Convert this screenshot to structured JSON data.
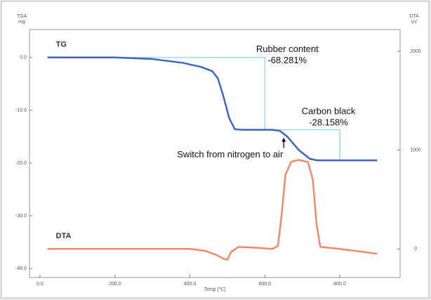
{
  "chart_data": {
    "type": "line",
    "y_label_top": "TGA",
    "y_label_unit": "mg",
    "y2_label_top": "DTA",
    "y2_label_unit": "uV",
    "x_label": "Temp [℃]",
    "xlim": [
      -28,
      961
    ],
    "xticks": [
      {
        "value": 0,
        "label": "0.0"
      },
      {
        "value": 200,
        "label": "200.0"
      },
      {
        "value": 400,
        "label": "400.0"
      },
      {
        "value": 600,
        "label": "600.0"
      },
      {
        "value": 800,
        "label": "800.0"
      }
    ],
    "ylim": [
      -41.7,
      5.3
    ],
    "yticks": [
      {
        "value": 0,
        "label": "0.0"
      },
      {
        "value": -10,
        "label": "-10.0"
      },
      {
        "value": -20,
        "label": "-20.0"
      },
      {
        "value": -30,
        "label": "-30.0"
      },
      {
        "value": -40,
        "label": "-40.0"
      }
    ],
    "y2lim": [
      -290,
      2220
    ],
    "y2ticks": [
      2000,
      1000,
      0
    ],
    "series": [
      {
        "name": "TG",
        "color": "#3d66c9",
        "x": [
          20,
          200,
          300,
          380,
          430,
          460,
          475,
          490,
          505,
          520,
          540,
          620,
          640,
          660,
          690,
          720,
          740,
          800,
          900
        ],
        "values": [
          0.0,
          0.0,
          -0.3,
          -1.0,
          -1.8,
          -2.6,
          -4.0,
          -7.5,
          -11.5,
          -13.6,
          -13.7,
          -13.7,
          -13.9,
          -15.0,
          -17.5,
          -19.2,
          -19.5,
          -19.5,
          -19.5
        ]
      },
      {
        "name": "DTA",
        "axis": "y2",
        "color": "#f2886a",
        "x": [
          20,
          200,
          400,
          440,
          470,
          490,
          500,
          510,
          530,
          580,
          620,
          635,
          645,
          655,
          670,
          690,
          715,
          728,
          738,
          748,
          800,
          900
        ],
        "values": [
          0,
          0,
          0,
          -20,
          -60,
          -100,
          -110,
          -30,
          20,
          10,
          0,
          30,
          350,
          750,
          880,
          900,
          880,
          700,
          250,
          20,
          0,
          -50
        ]
      }
    ],
    "guides": [
      {
        "x": [
          120,
          600
        ],
        "y": [
          0.0,
          -13.7
        ]
      },
      {
        "x": [
          600,
          800
        ],
        "y": [
          -13.7,
          -19.5
        ]
      }
    ],
    "annotations": [
      {
        "lines": [
          "Rubber content",
          "-68.281%"
        ],
        "x": 660,
        "y": 1.5
      },
      {
        "lines": [
          "Carbon black",
          "-28.158%"
        ],
        "x": 770,
        "y": -10.3
      },
      {
        "lines": [
          "Switch from nitrogen to air"
        ],
        "x": 645,
        "y": -18.5,
        "arrow": true
      }
    ]
  }
}
